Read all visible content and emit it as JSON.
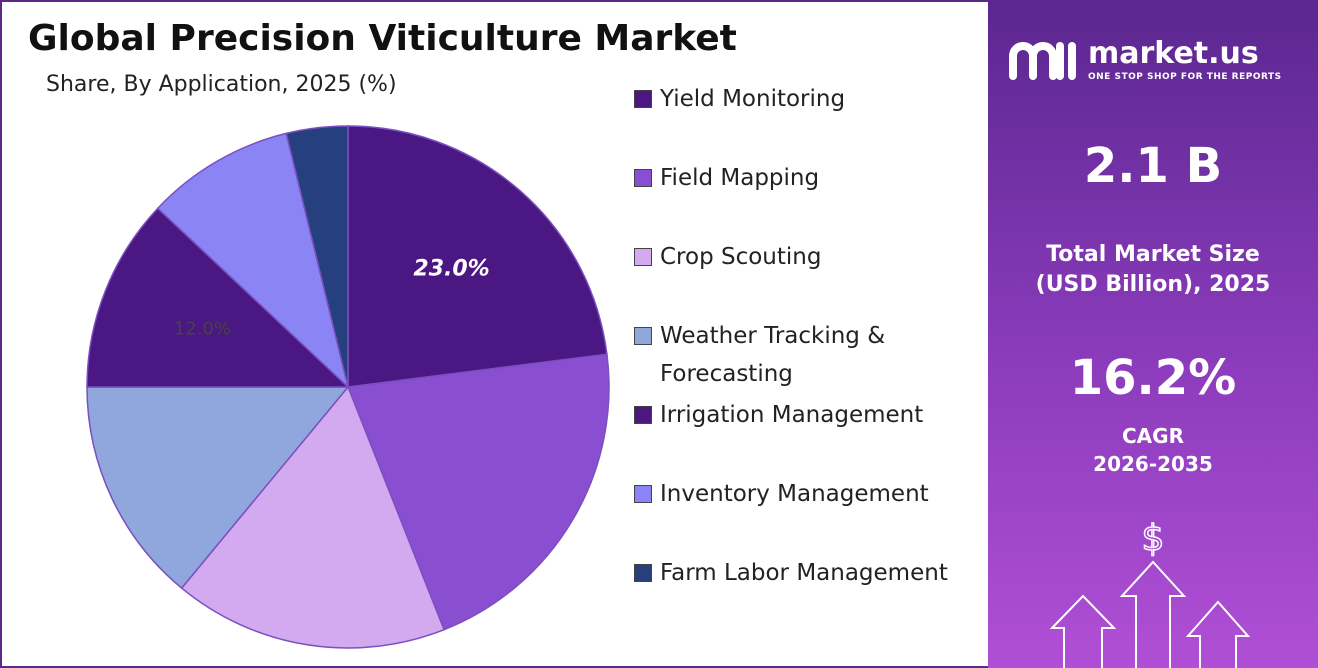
{
  "chart_data": {
    "type": "pie",
    "title": "Global Precision Viticulture Market",
    "subtitle": "Share, By Application, 2025 (%)",
    "categories": [
      "Yield Monitoring",
      "Field Mapping",
      "Crop Scouting",
      "Weather Tracking & Forecasting",
      "Irrigation Management",
      "Inventory Management",
      "Farm Labor Management"
    ],
    "values": [
      23.0,
      21.0,
      17.0,
      14.0,
      12.0,
      9.2,
      3.8
    ],
    "value_labels": [
      "23.0%",
      null,
      null,
      null,
      "12.0%",
      null,
      null
    ],
    "colors": [
      "#4b1783",
      "#8a4fd0",
      "#d3a9ef",
      "#8fa7dc",
      "#4b1783",
      "#8b84f5",
      "#263f7e"
    ]
  },
  "brand": {
    "name": "market.us",
    "tagline": "ONE STOP SHOP FOR THE REPORTS"
  },
  "stats": {
    "market_size": "2.1 B",
    "market_size_label": "Total Market Size",
    "market_size_label_2": "(USD Billion), 2025",
    "cagr": "16.2%",
    "cagr_label": "CAGR",
    "cagr_period": "2026-2035"
  }
}
